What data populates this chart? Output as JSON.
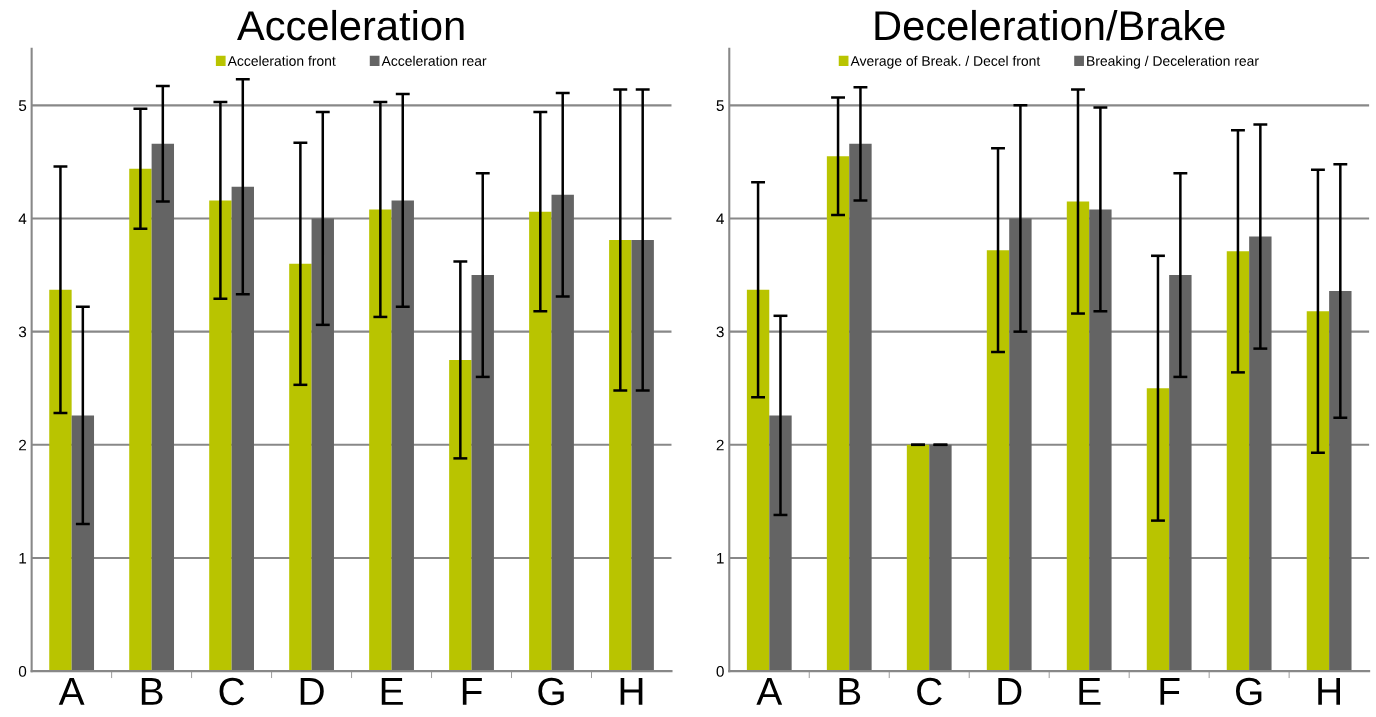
{
  "chart_data": [
    {
      "type": "bar",
      "title": "Acceleration",
      "categories": [
        "A",
        "B",
        "C",
        "D",
        "E",
        "F",
        "G",
        "H"
      ],
      "ylim": [
        0,
        5.5
      ],
      "yticks": [
        0,
        1,
        2,
        3,
        4,
        5
      ],
      "grid": "y",
      "legend": "top",
      "series": [
        {
          "name": "Acceleration front",
          "color": "#b9c400",
          "values": [
            3.37,
            4.44,
            4.16,
            3.6,
            4.08,
            2.75,
            4.06,
            3.81
          ],
          "errors": [
            1.09,
            0.53,
            0.87,
            1.07,
            0.95,
            0.87,
            0.88,
            1.33
          ]
        },
        {
          "name": "Acceleration rear",
          "color": "#646464",
          "values": [
            2.26,
            4.66,
            4.28,
            4.0,
            4.16,
            3.5,
            4.21,
            3.81
          ],
          "errors": [
            0.96,
            0.51,
            0.95,
            0.94,
            0.94,
            0.9,
            0.9,
            1.33
          ]
        }
      ]
    },
    {
      "type": "bar",
      "title": "Deceleration/Brake",
      "categories": [
        "A",
        "B",
        "C",
        "D",
        "E",
        "F",
        "G",
        "H"
      ],
      "ylim": [
        0,
        5.5
      ],
      "yticks": [
        0,
        1,
        2,
        3,
        4,
        5
      ],
      "grid": "y",
      "legend": "top",
      "series": [
        {
          "name": "Average of Break. / Decel front",
          "color": "#b9c400",
          "values": [
            3.37,
            4.55,
            2.0,
            3.72,
            4.15,
            2.5,
            3.71,
            3.18
          ],
          "errors": [
            0.95,
            0.52,
            0,
            0.9,
            0.99,
            1.17,
            1.07,
            1.25
          ]
        },
        {
          "name": "Breaking / Deceleration rear",
          "color": "#646464",
          "values": [
            2.26,
            4.66,
            2.0,
            4.0,
            4.08,
            3.5,
            3.84,
            3.36
          ],
          "errors": [
            0.88,
            0.5,
            0,
            1.0,
            0.9,
            0.9,
            0.99,
            1.12
          ]
        }
      ]
    }
  ]
}
